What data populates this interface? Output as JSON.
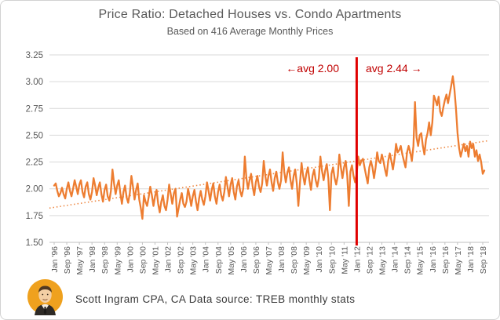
{
  "header": {
    "title": "Price Ratio: Detached Houses vs. Condo Apartments",
    "subtitle": "Based on 416 Average Monthly Prices"
  },
  "footer": {
    "text": "Scott Ingram CPA, CA  Data source: TREB monthly stats",
    "avatar": "scott-ingram-portrait"
  },
  "colors": {
    "series": "#ED7D31",
    "trend": "#ED7D31",
    "vline": "#E00000",
    "annotation": "#C00000",
    "grid": "#D9D9D9",
    "axis": "#BFBFBF",
    "tick_text": "#595959"
  },
  "chart_data": {
    "type": "line",
    "title": "Price Ratio: Detached Houses vs. Condo Apartments",
    "subtitle": "Based on 416 Average Monthly Prices",
    "x_start": "1996-01",
    "x_end": "2018-10",
    "x_tick_labels": [
      "Jan '96",
      "Sep '96",
      "May '97",
      "Jan '98",
      "Sep '98",
      "May '99",
      "Jan '00",
      "Sep '00",
      "May '01",
      "Jan '02",
      "Sep '02",
      "May '03",
      "Jan '04",
      "Sep '04",
      "May '05",
      "Jan '06",
      "Sep '06",
      "May '07",
      "Jan '08",
      "Sep '08",
      "May '09",
      "Jan '10",
      "Sep '10",
      "May '11",
      "Jan '12",
      "Sep '12",
      "May '13",
      "Jan '14",
      "Sep '14",
      "May '15",
      "Jan '16",
      "Sep '16",
      "May '17",
      "Jan '18",
      "Sep '18"
    ],
    "x_tick_step_months": 8,
    "y_tick_labels": [
      "1.50",
      "1.75",
      "2.00",
      "2.25",
      "2.50",
      "2.75",
      "3.00",
      "3.25"
    ],
    "ylim": [
      1.5,
      3.25
    ],
    "grid": true,
    "legend": false,
    "values": [
      2.03,
      2.05,
      1.98,
      1.93,
      1.96,
      2.01,
      1.95,
      1.91,
      2.0,
      2.06,
      1.98,
      1.93,
      2.0,
      2.08,
      2.02,
      1.95,
      2.04,
      2.08,
      1.97,
      1.92,
      2.02,
      2.06,
      1.95,
      1.9,
      1.97,
      2.1,
      2.03,
      1.94,
      2.01,
      2.06,
      1.95,
      1.88,
      1.99,
      2.04,
      1.93,
      1.89,
      1.98,
      2.18,
      2.05,
      1.95,
      2.03,
      2.08,
      1.96,
      1.86,
      1.97,
      2.03,
      1.92,
      1.87,
      1.96,
      2.12,
      2.02,
      1.9,
      1.99,
      2.05,
      1.9,
      1.82,
      1.72,
      1.94,
      1.88,
      1.84,
      1.92,
      2.02,
      1.94,
      1.84,
      1.93,
      1.99,
      1.86,
      1.78,
      1.88,
      1.94,
      1.84,
      1.8,
      1.9,
      2.04,
      1.95,
      1.86,
      1.96,
      2.0,
      1.74,
      1.82,
      1.9,
      1.96,
      1.86,
      1.83,
      1.88,
      2.0,
      1.93,
      1.84,
      1.93,
      1.99,
      1.88,
      1.8,
      1.91,
      1.98,
      1.9,
      1.85,
      1.93,
      2.06,
      1.98,
      1.89,
      1.99,
      2.05,
      1.93,
      1.86,
      1.97,
      2.04,
      1.94,
      1.89,
      1.97,
      2.11,
      2.02,
      1.93,
      2.04,
      2.1,
      1.97,
      1.9,
      2.02,
      2.08,
      1.98,
      1.93,
      2.0,
      2.3,
      2.1,
      2.0,
      2.08,
      2.14,
      2.02,
      1.94,
      2.06,
      2.12,
      2.02,
      1.97,
      2.05,
      2.26,
      2.12,
      2.03,
      2.12,
      2.18,
      2.06,
      1.98,
      2.1,
      2.16,
      2.06,
      2.0,
      2.08,
      2.34,
      2.16,
      2.06,
      2.15,
      2.2,
      2.08,
      2.0,
      2.12,
      2.18,
      2.05,
      1.84,
      2.05,
      2.24,
      2.12,
      2.04,
      2.14,
      2.2,
      2.08,
      1.99,
      2.12,
      2.18,
      2.08,
      2.02,
      2.1,
      2.3,
      2.17,
      2.08,
      2.17,
      2.23,
      2.1,
      1.8,
      2.14,
      2.2,
      2.1,
      2.04,
      2.12,
      2.32,
      2.2,
      2.1,
      2.2,
      2.26,
      2.12,
      1.84,
      2.16,
      2.22,
      2.12,
      2.06,
      2.14,
      2.3,
      2.22,
      2.26,
      2.28,
      2.2,
      2.12,
      2.05,
      2.2,
      2.26,
      2.2,
      2.1,
      2.2,
      2.34,
      2.26,
      2.24,
      2.32,
      2.26,
      2.18,
      2.12,
      2.26,
      2.33,
      2.26,
      2.18,
      2.28,
      2.42,
      2.34,
      2.36,
      2.4,
      2.32,
      2.26,
      2.2,
      2.34,
      2.4,
      2.34,
      2.26,
      2.4,
      2.81,
      2.48,
      2.4,
      2.5,
      2.52,
      2.4,
      2.32,
      2.46,
      2.52,
      2.62,
      2.5,
      2.62,
      2.87,
      2.83,
      2.78,
      2.86,
      2.72,
      2.68,
      2.76,
      2.83,
      2.88,
      2.8,
      2.88,
      2.96,
      3.05,
      2.93,
      2.75,
      2.52,
      2.38,
      2.3,
      2.36,
      2.42,
      2.35,
      2.4,
      2.3,
      2.44,
      2.38,
      2.42,
      2.3,
      2.36,
      2.26,
      2.32,
      2.25,
      2.14,
      2.17
    ],
    "trend": {
      "type": "linear",
      "start_value": 1.82,
      "end_value": 2.45,
      "style": "dotted"
    },
    "vline": {
      "at": "Jan '12",
      "month_index": 192,
      "label_left": "←avg 2.00",
      "label_right": "avg 2.44 →",
      "avg_before": 2.0,
      "avg_after": 2.44
    }
  }
}
